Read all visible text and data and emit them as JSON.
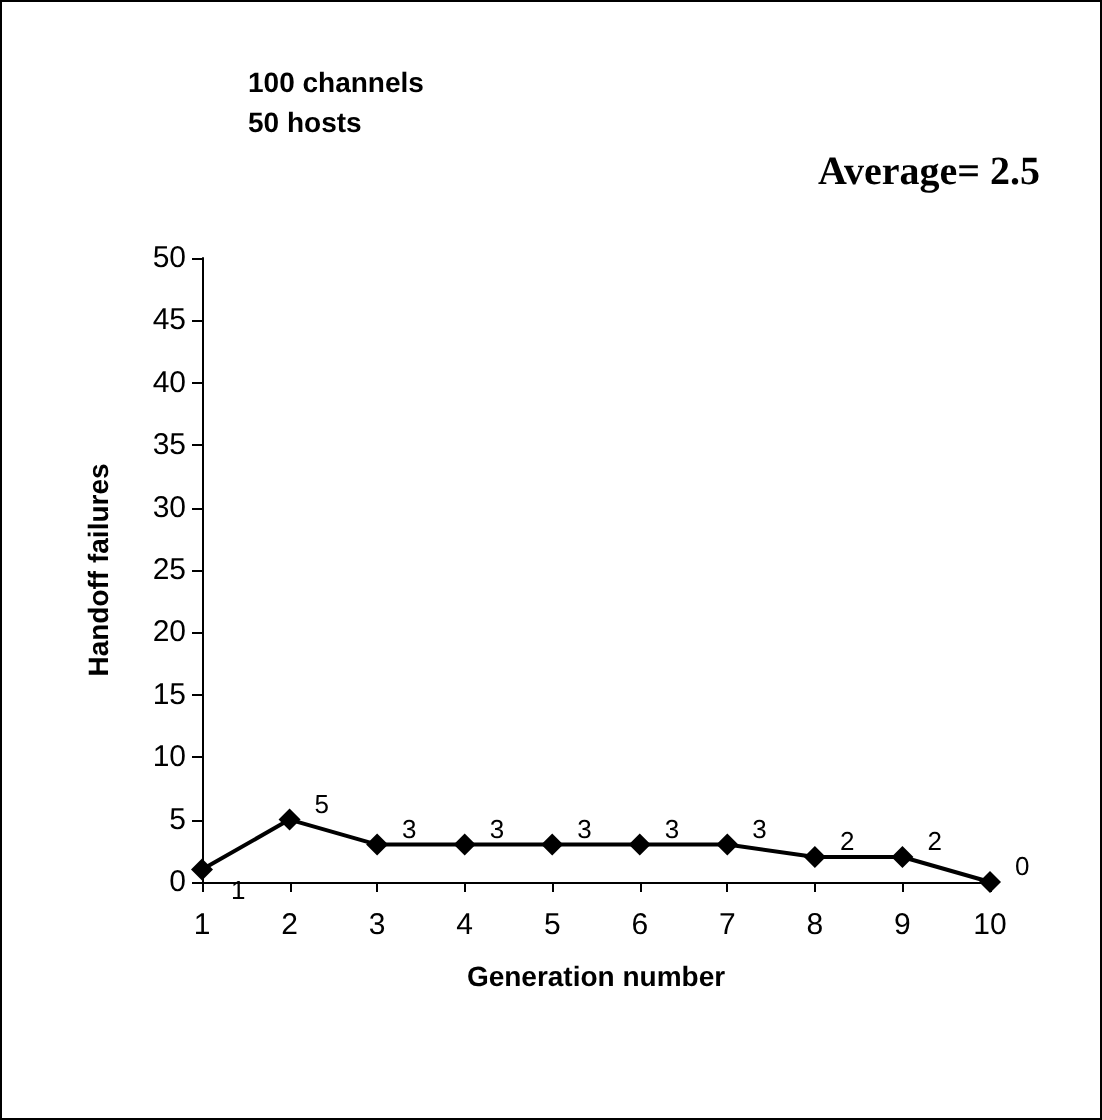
{
  "chart_data": {
    "type": "line",
    "title": "100 channels",
    "subtitle": "50 hosts",
    "annotations": [
      "Average= 2.5"
    ],
    "xlabel": "Generation number",
    "ylabel": "Handoff failures",
    "categories": [
      "1",
      "2",
      "3",
      "4",
      "5",
      "6",
      "7",
      "8",
      "9",
      "10"
    ],
    "series": [
      {
        "color": "#000000",
        "values": [
          1,
          5,
          3,
          3,
          3,
          3,
          3,
          2,
          2,
          0
        ]
      }
    ],
    "ylim": [
      0,
      50
    ],
    "yticks": [
      0,
      5,
      10,
      15,
      20,
      25,
      30,
      35,
      40,
      45,
      50
    ],
    "grid": false,
    "marker": "diamond",
    "line_style": "solid",
    "data_labels": true
  }
}
